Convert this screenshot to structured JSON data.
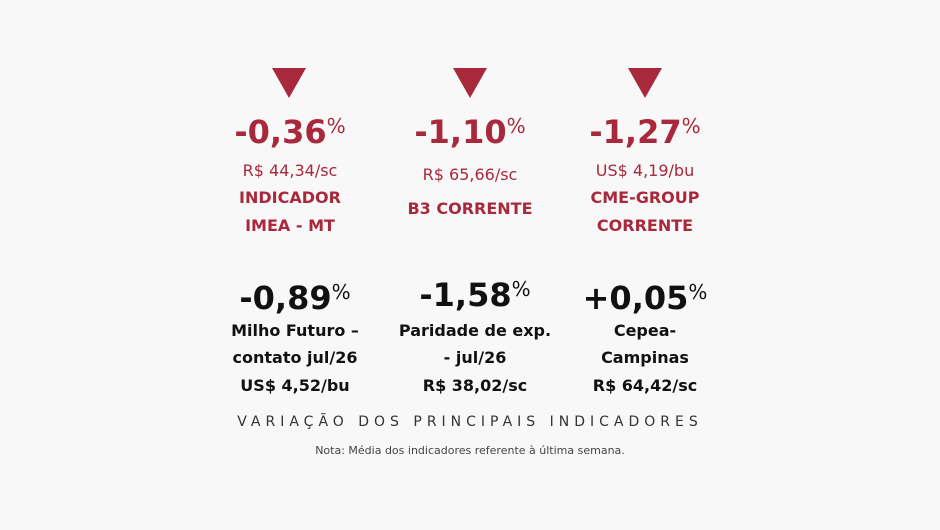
{
  "top_row": [
    {
      "change": "-0,36",
      "unit": "%",
      "price": "R$ 44,34/sc",
      "label_lines": [
        "INDICADOR",
        "IMEA - MT"
      ]
    },
    {
      "change": "-1,10",
      "unit": "%",
      "price": "R$ 65,66/sc",
      "label_lines": [
        "B3 CORRENTE"
      ]
    },
    {
      "change": "-1,27",
      "unit": "%",
      "price": "US$ 4,19/bu",
      "label_lines": [
        "CME-GROUP",
        "CORRENTE"
      ]
    }
  ],
  "bottom_row": [
    {
      "change": "-0,89",
      "unit": "%",
      "label_lines": [
        "Milho Futuro –",
        "contato jul/26"
      ],
      "price": "US$ 4,52/bu"
    },
    {
      "change": "-1,58",
      "unit": "%",
      "label_lines": [
        "Paridade de exp.",
        "- jul/26"
      ],
      "price": "R$ 38,02/sc"
    },
    {
      "change": "+0,05",
      "unit": "%",
      "label_lines": [
        "Cepea-",
        "Campinas"
      ],
      "price": "R$ 64,42/sc"
    }
  ],
  "heading": "VARIAÇÃO DOS PRINCIPAIS INDICADORES",
  "note": "Nota: Média dos indicadores referente à última semana.",
  "colors": {
    "accent": "#a8283c",
    "text": "#111111"
  },
  "icons": {
    "decrease": "down-triangle-icon"
  }
}
